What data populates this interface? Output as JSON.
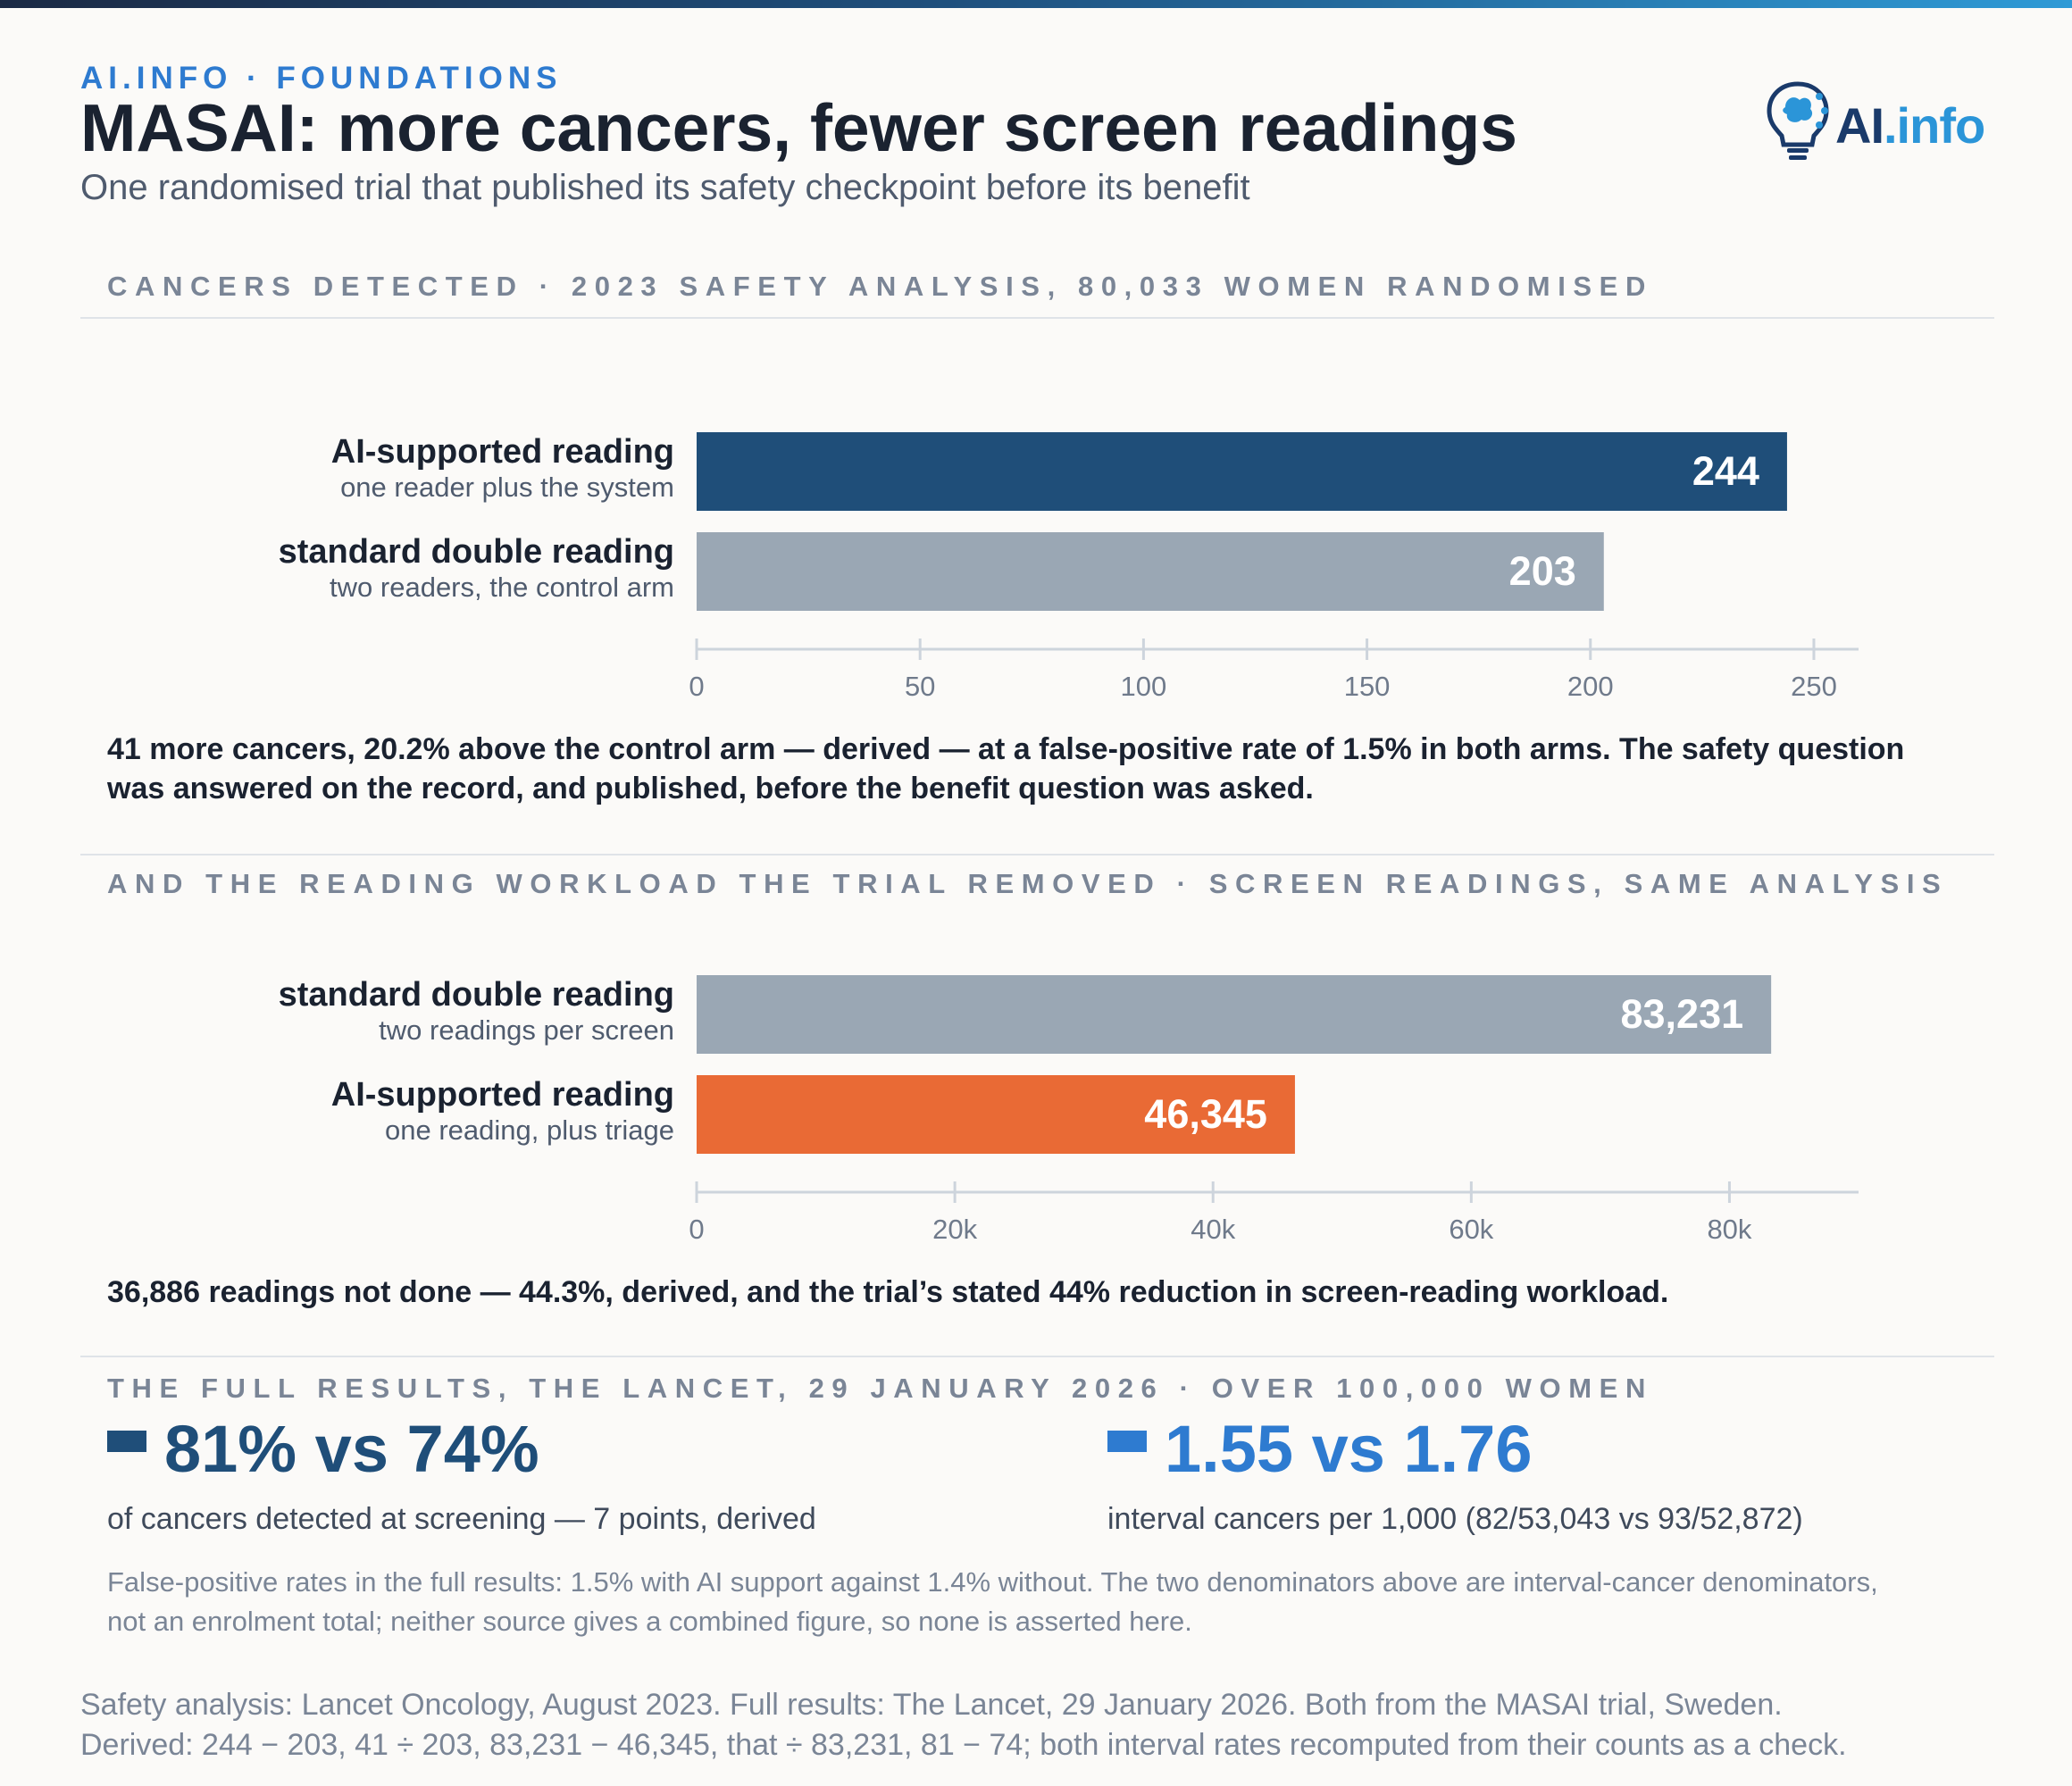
{
  "header": {
    "kicker": "AI.INFO · FOUNDATIONS",
    "title": "MASAI: more cancers, fewer screen readings",
    "subtitle": "One randomised trial that published its safety checkpoint before its benefit",
    "logo_ai": "AI",
    "logo_info": ".info"
  },
  "section1": {
    "heading": "CANCERS DETECTED · 2023 SAFETY ANALYSIS, 80,033 WOMEN RANDOMISED",
    "bars": [
      {
        "label": "AI-supported reading",
        "sublabel": "one reader plus the system",
        "value_text": "244"
      },
      {
        "label": "standard double reading",
        "sublabel": "two readers, the control arm",
        "value_text": "203"
      }
    ],
    "note": "41 more cancers, 20.2% above the control arm — derived — at a false-positive rate of 1.5% in both arms. The safety question was answered on the record, and published, before the benefit question was asked."
  },
  "section2": {
    "heading": "AND THE READING WORKLOAD THE TRIAL REMOVED · SCREEN READINGS, SAME ANALYSIS",
    "bars": [
      {
        "label": "standard double reading",
        "sublabel": "two readings per screen",
        "value_text": "83,231"
      },
      {
        "label": "AI-supported reading",
        "sublabel": "one reading, plus triage",
        "value_text": "46,345"
      }
    ],
    "note": "36,886 readings not done — 44.3%, derived, and the trial’s stated 44% reduction in screen-reading workload."
  },
  "section3": {
    "heading": "THE FULL RESULTS, THE LANCET, 29 JANUARY 2026 · OVER 100,000 WOMEN",
    "stat1": {
      "big": "81% vs 74%",
      "desc": "of cancers detected at screening — 7 points, derived",
      "color": "#1f4e79"
    },
    "stat2": {
      "big": "1.55 vs 1.76",
      "desc": "interval cancers per 1,000 (82/53,043 vs 93/52,872)",
      "color": "#2e7bd0"
    },
    "fineprint": "False-positive rates in the full results: 1.5% with AI support against 1.4% without. The two denominators above are interval-cancer denominators, not an enrolment total; neither source gives a combined figure, so none is asserted here."
  },
  "sources": {
    "line1": "Safety analysis: Lancet Oncology, August 2023. Full results: The Lancet, 29 January 2026. Both from the MASAI trial, Sweden.",
    "line2": "Derived: 244 − 203, 41 ÷ 203, 83,231 − 46,345, that ÷ 83,231, 81 − 74; both interval rates recomputed from their counts as a check."
  },
  "chart_data": [
    {
      "type": "bar",
      "orientation": "horizontal",
      "title": "CANCERS DETECTED · 2023 SAFETY ANALYSIS, 80,033 WOMEN RANDOMISED",
      "categories": [
        "AI-supported reading",
        "standard double reading"
      ],
      "values": [
        244,
        203
      ],
      "colors": [
        "#1f4e79",
        "#9aa7b4"
      ],
      "xlim": [
        0,
        260
      ],
      "ticks": [
        0,
        50,
        100,
        150,
        200,
        250
      ],
      "tick_labels": [
        "0",
        "50",
        "100",
        "150",
        "200",
        "250"
      ]
    },
    {
      "type": "bar",
      "orientation": "horizontal",
      "title": "AND THE READING WORKLOAD THE TRIAL REMOVED · SCREEN READINGS, SAME ANALYSIS",
      "categories": [
        "standard double reading",
        "AI-supported reading"
      ],
      "values": [
        83231,
        46345
      ],
      "colors": [
        "#9aa7b4",
        "#e96a35"
      ],
      "xlim": [
        0,
        90000
      ],
      "ticks": [
        0,
        20000,
        40000,
        60000,
        80000
      ],
      "tick_labels": [
        "0",
        "20k",
        "40k",
        "60k",
        "80k"
      ]
    }
  ]
}
